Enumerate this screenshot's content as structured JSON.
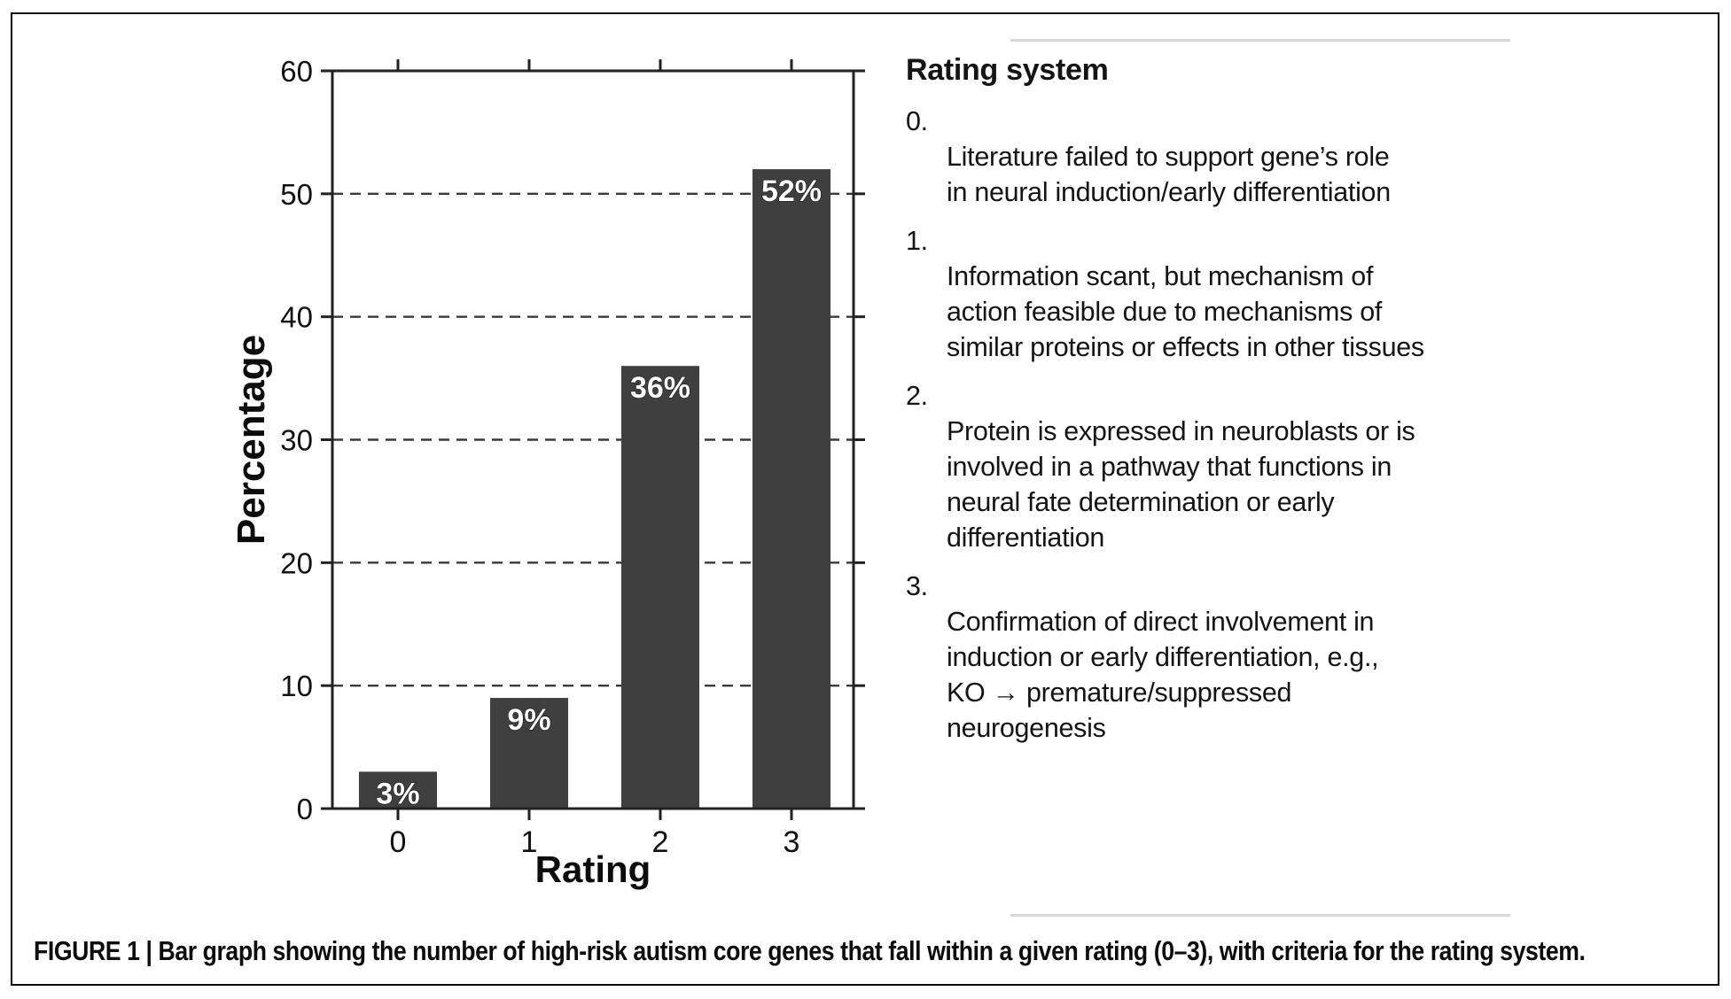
{
  "figure": {
    "caption": "FIGURE 1 | Bar graph showing the number of high-risk autism core genes that fall within a given rating (0–3), with criteria for the rating system."
  },
  "chart_data": {
    "type": "bar",
    "title": "",
    "categories": [
      "0",
      "1",
      "2",
      "3"
    ],
    "values": [
      3,
      9,
      36,
      52
    ],
    "bar_labels": [
      "3%",
      "9%",
      "36%",
      "52%"
    ],
    "xlabel": "Rating",
    "ylabel": "Percentage",
    "ylim": [
      0,
      60
    ],
    "yticks": [
      0,
      10,
      20,
      30,
      40,
      50,
      60
    ],
    "gridlines": [
      10,
      20,
      30,
      40,
      50
    ],
    "grid_style": "horizontal dashed",
    "legend_position": "none",
    "bar_color": "#3f3f3f",
    "bar_label_color": "#ffffff",
    "axis_color": "#222222"
  },
  "legend": {
    "heading": "Rating system",
    "items": [
      {
        "number": "0.",
        "lines": [
          "Literature failed to support gene’s role",
          "in neural induction/early differentiation"
        ]
      },
      {
        "number": "1.",
        "lines": [
          "Information scant, but mechanism of",
          "action feasible due to mechanisms of",
          "similar proteins or effects in other tissues"
        ]
      },
      {
        "number": "2.",
        "lines": [
          "Protein is expressed in neuroblasts or is",
          "involved in a pathway that functions in",
          "neural fate determination or early",
          "differentiation"
        ]
      },
      {
        "number": "3.",
        "lines": [
          "Confirmation of direct involvement in",
          "induction or early differentiation, e.g.,",
          "KO → premature/suppressed",
          "neurogenesis"
        ]
      }
    ]
  },
  "colors": {
    "background": "#ffffff",
    "frame_border": "#0a0a0a",
    "separator_rule": "#d7d7d7",
    "text": "#141414"
  }
}
